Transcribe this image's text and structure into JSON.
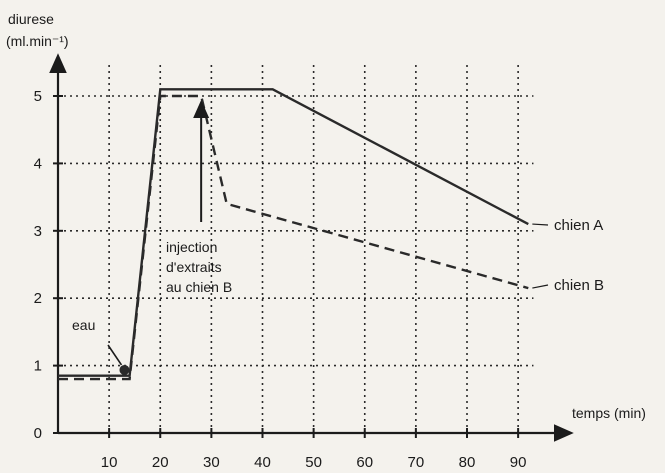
{
  "chart_data": {
    "type": "line",
    "ylabel": "diurese",
    "ylabel_unit": "(ml.min⁻¹)",
    "xlabel": "temps (min)",
    "x_ticks": [
      10,
      20,
      30,
      40,
      50,
      60,
      70,
      80,
      90
    ],
    "y_ticks": [
      0,
      1,
      2,
      3,
      4,
      5
    ],
    "xlim": [
      0,
      95
    ],
    "ylim": [
      0,
      5.5
    ],
    "grid": true,
    "series": [
      {
        "name": "chien A",
        "style": "solid",
        "points": [
          [
            0,
            0.85
          ],
          [
            14,
            0.85
          ],
          [
            20,
            5.1
          ],
          [
            42,
            5.1
          ],
          [
            92,
            3.1
          ]
        ]
      },
      {
        "name": "chien B",
        "style": "dashed",
        "points": [
          [
            0,
            0.8
          ],
          [
            14,
            0.8
          ],
          [
            20,
            5.0
          ],
          [
            28,
            5.0
          ],
          [
            33,
            3.4
          ],
          [
            92,
            2.15
          ]
        ]
      }
    ],
    "annotations": [
      {
        "text_lines": [
          "injection",
          "d'extraits",
          "au chien B"
        ],
        "arrow_to": [
          28,
          5.0
        ]
      },
      {
        "text_lines": [
          "eau"
        ],
        "arrow_to": [
          13,
          0.95
        ]
      }
    ]
  },
  "colors": {
    "background": "#f4f2ed",
    "ink": "#1b1b1b"
  }
}
